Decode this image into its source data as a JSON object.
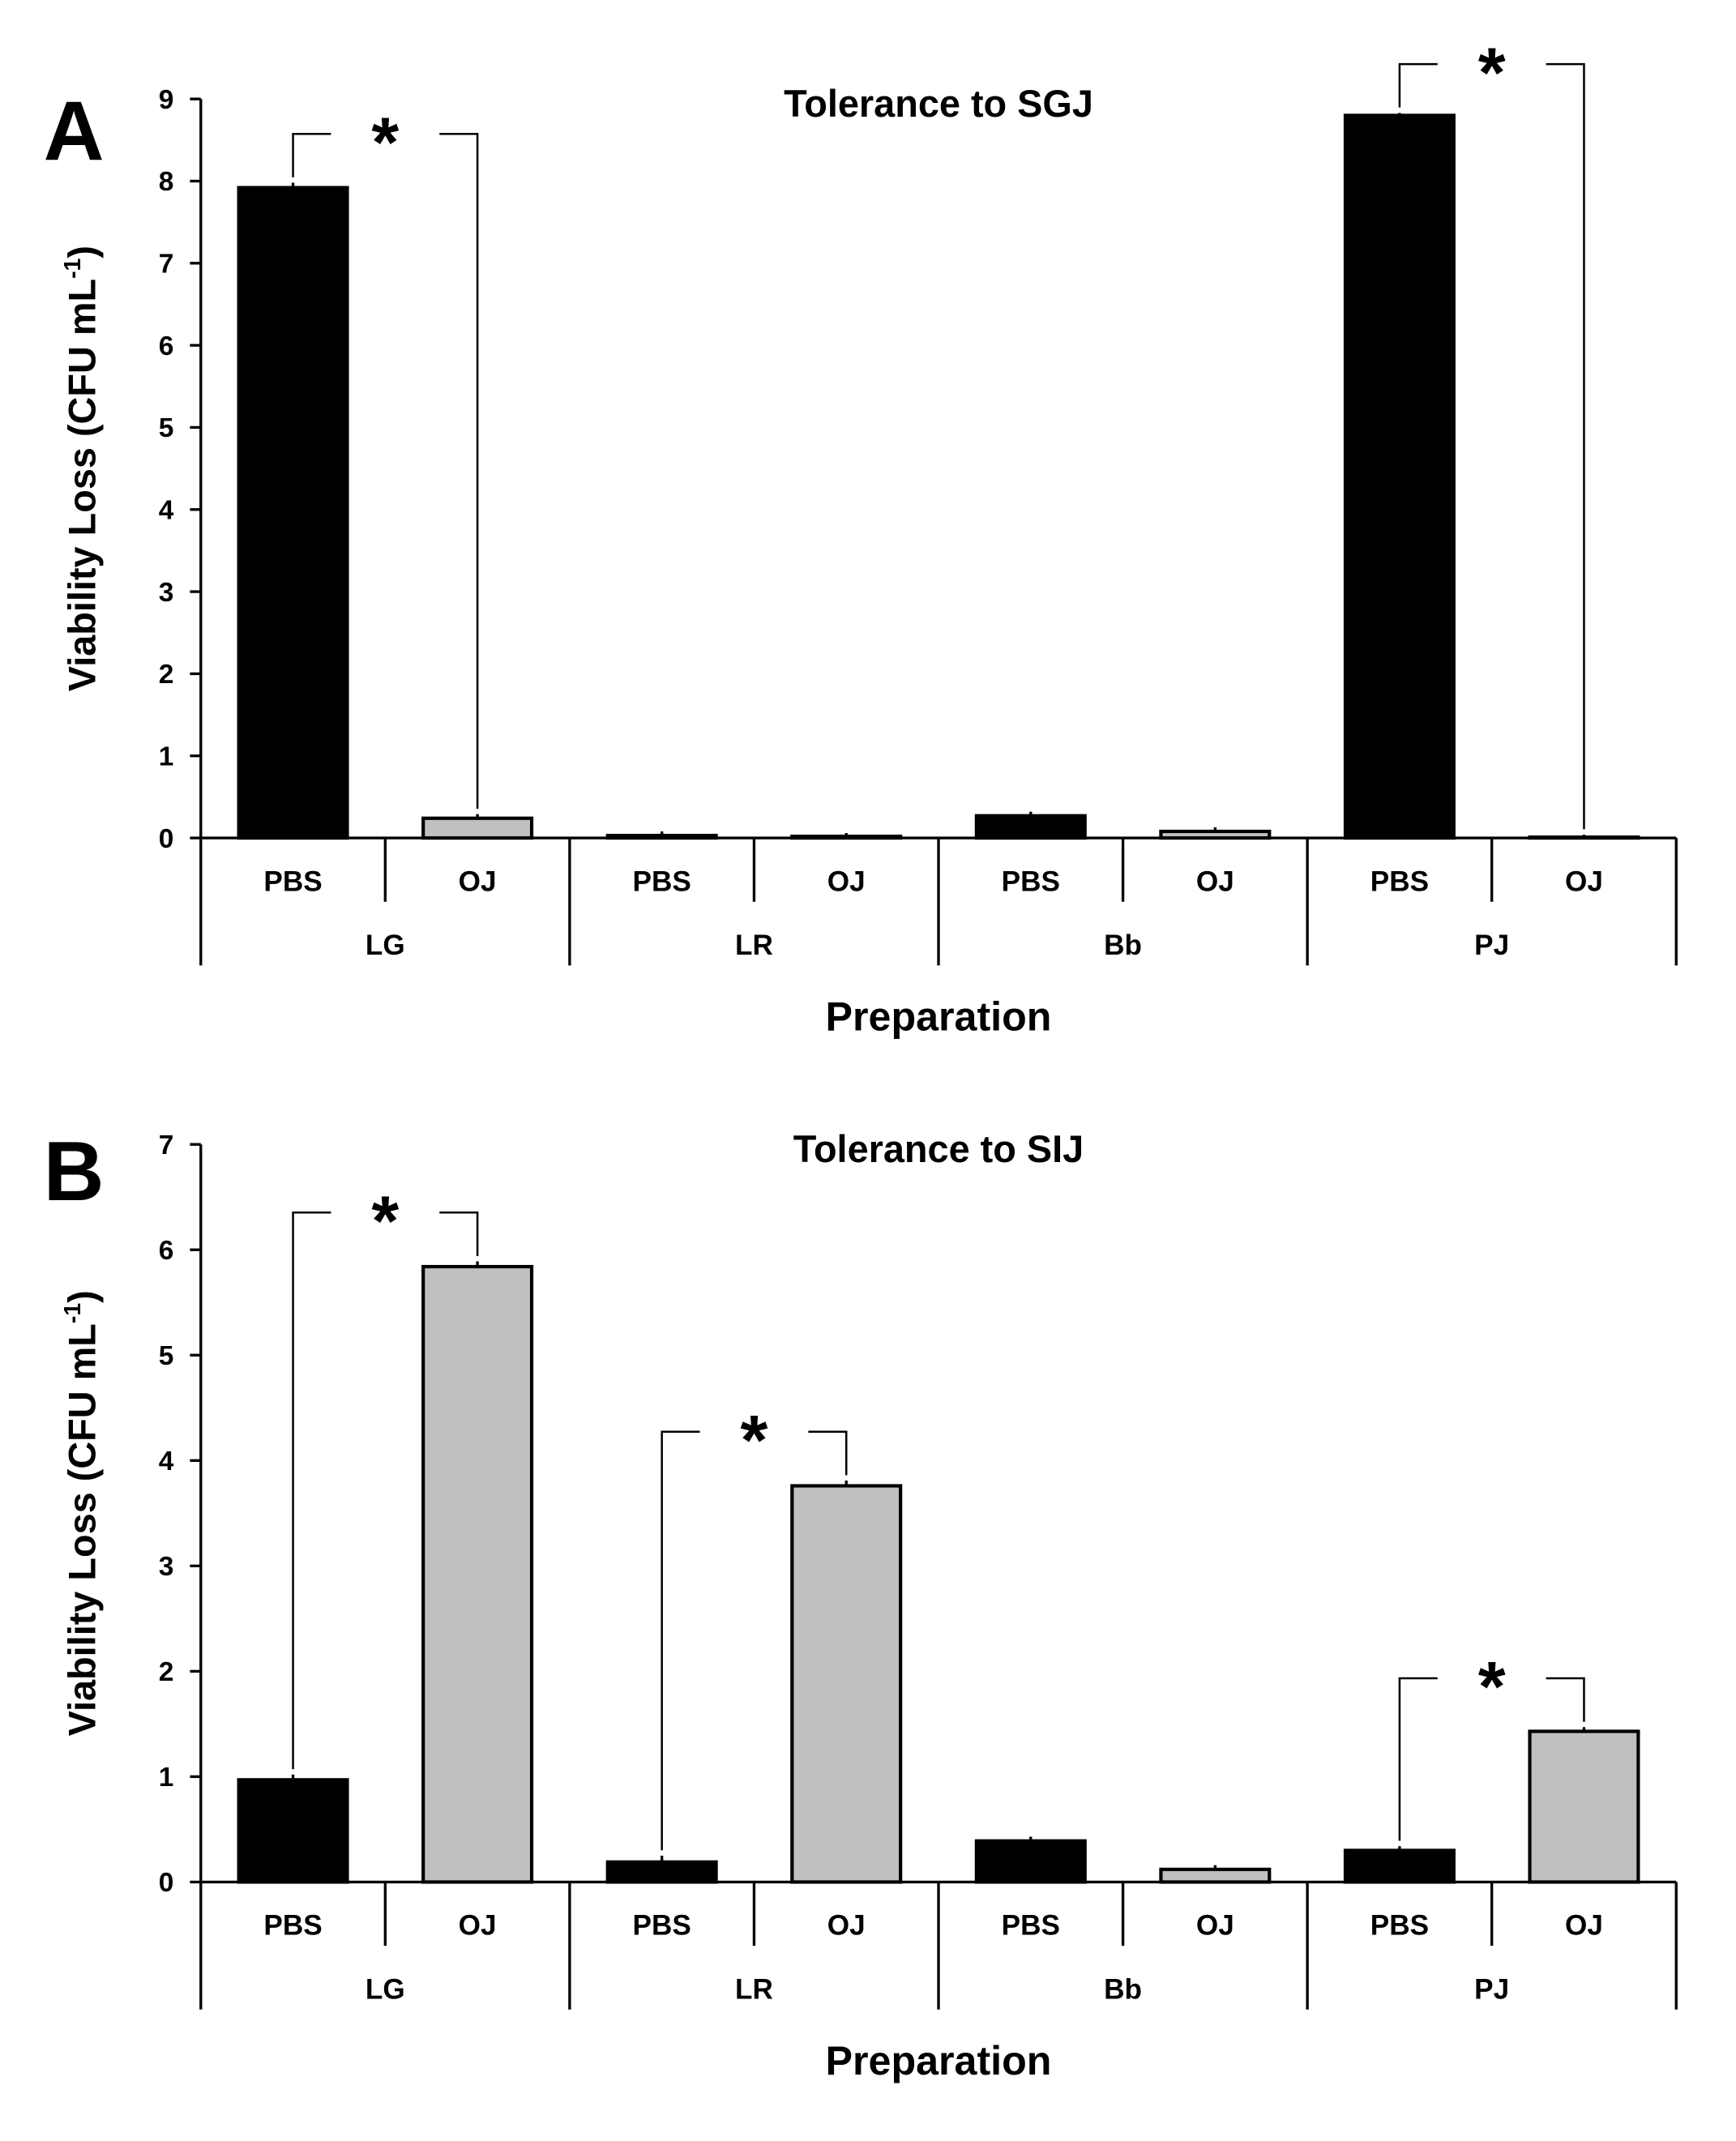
{
  "chart_data": [
    {
      "type": "bar",
      "panel": "A",
      "title": "Tolerance to SGJ",
      "ylabel": "Viability Loss (CFU mL",
      "ylabel_sup": "-1",
      "ylabel_end": ")",
      "xlabel": "Preparation",
      "categories": [
        "PBS",
        "OJ",
        "PBS",
        "OJ",
        "PBS",
        "OJ",
        "PBS",
        "OJ"
      ],
      "groups": [
        "LG",
        "LR",
        "Bb",
        "PJ"
      ],
      "values": [
        7.92,
        0.24,
        0.03,
        0.02,
        0.27,
        0.08,
        8.8,
        0.01
      ],
      "errors": [
        0.06,
        0.05,
        0.05,
        0.04,
        0.05,
        0.05,
        0.03,
        0.03
      ],
      "colors": [
        "#000000",
        "#c0c0c0",
        "#000000",
        "#c0c0c0",
        "#000000",
        "#c0c0c0",
        "#000000",
        "#c0c0c0"
      ],
      "ylim": [
        0,
        9
      ],
      "yticks": [
        0,
        1,
        2,
        3,
        4,
        5,
        6,
        7,
        8,
        9
      ],
      "annotations": [
        {
          "from": 0,
          "to": 1,
          "label": "*"
        },
        {
          "from": 6,
          "to": 7,
          "label": "*"
        }
      ]
    },
    {
      "type": "bar",
      "panel": "B",
      "title": "Tolerance to SIJ",
      "ylabel": "Viability Loss (CFU mL",
      "ylabel_sup": "-1",
      "ylabel_end": ")",
      "xlabel": "Preparation",
      "categories": [
        "PBS",
        "OJ",
        "PBS",
        "OJ",
        "PBS",
        "OJ",
        "PBS",
        "OJ"
      ],
      "groups": [
        "LG",
        "LR",
        "Bb",
        "PJ"
      ],
      "values": [
        0.97,
        5.84,
        0.19,
        3.76,
        0.39,
        0.12,
        0.3,
        1.43
      ],
      "errors": [
        0.05,
        0.05,
        0.06,
        0.05,
        0.04,
        0.04,
        0.04,
        0.04
      ],
      "colors": [
        "#000000",
        "#c0c0c0",
        "#000000",
        "#c0c0c0",
        "#000000",
        "#c0c0c0",
        "#000000",
        "#c0c0c0"
      ],
      "ylim": [
        0,
        7
      ],
      "yticks": [
        0,
        1,
        2,
        3,
        4,
        5,
        6,
        7
      ],
      "annotations": [
        {
          "from": 0,
          "to": 1,
          "label": "*"
        },
        {
          "from": 2,
          "to": 3,
          "label": "*"
        },
        {
          "from": 6,
          "to": 7,
          "label": "*"
        }
      ]
    }
  ]
}
